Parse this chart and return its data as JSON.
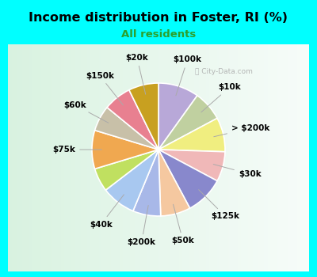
{
  "title": "Income distribution in Foster, RI (%)",
  "subtitle": "All residents",
  "subtitle_color": "#2ca02c",
  "bg_outer": "#00ffff",
  "bg_chart": "#e8f5ee",
  "slices": [
    {
      "label": "$100k",
      "value": 9.5,
      "color": "#b8a8d8"
    },
    {
      "label": "$10k",
      "value": 7.0,
      "color": "#c0d0a0"
    },
    {
      "label": "> $200k",
      "value": 8.0,
      "color": "#f0ee80"
    },
    {
      "label": "$30k",
      "value": 7.0,
      "color": "#f0b8b8"
    },
    {
      "label": "$125k",
      "value": 9.0,
      "color": "#8888cc"
    },
    {
      "label": "$50k",
      "value": 7.0,
      "color": "#f5c8a0"
    },
    {
      "label": "$200k",
      "value": 6.5,
      "color": "#a8b8e8"
    },
    {
      "label": "$40k",
      "value": 8.0,
      "color": "#a8c8f0"
    },
    {
      "label": "",
      "value": 5.5,
      "color": "#c0e060"
    },
    {
      "label": "$75k",
      "value": 9.0,
      "color": "#f0a850"
    },
    {
      "label": "$60k",
      "value": 6.0,
      "color": "#c8c0a8"
    },
    {
      "label": "$150k",
      "value": 6.5,
      "color": "#e88090"
    },
    {
      "label": "$20k",
      "value": 7.0,
      "color": "#c8a020"
    }
  ],
  "figsize": [
    4.0,
    3.5
  ],
  "dpi": 100,
  "title_fontsize": 11.5,
  "subtitle_fontsize": 9.5,
  "label_fontsize": 7.5
}
